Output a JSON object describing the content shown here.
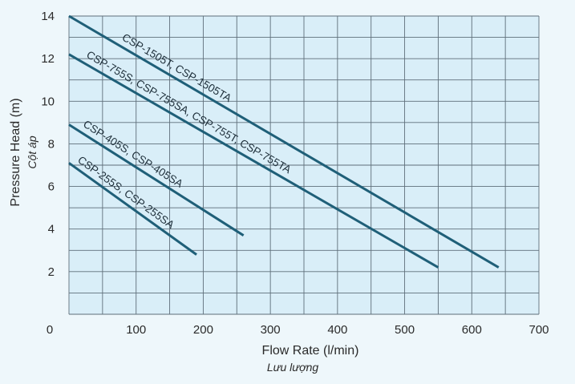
{
  "chart_data": {
    "type": "line",
    "xlabel": "Flow Rate (l/min)",
    "xlabel_sub": "Lưu lượng",
    "ylabel": "Pressure Head (m)",
    "ylabel_sub": "Cột áp",
    "xlim": [
      0,
      700
    ],
    "ylim": [
      0,
      14
    ],
    "x_ticks": [
      0,
      100,
      200,
      300,
      400,
      500,
      600,
      700
    ],
    "y_ticks": [
      2,
      4,
      6,
      8,
      10,
      12,
      14
    ],
    "y_tick_labels": [
      "2",
      "4",
      "6",
      "8",
      "10",
      "12",
      "14"
    ],
    "x_tick_labels": [
      "0",
      "100",
      "200",
      "300",
      "400",
      "500",
      "600",
      "700"
    ],
    "grid": true,
    "colors": {
      "plot_background": "#d9eef8",
      "grid": "#5f6f7a",
      "line": "#1f5f78",
      "page_background": "#eef7fb"
    },
    "series": [
      {
        "name": "CSP-1505T, CSP-1505TA",
        "x": [
          0,
          640
        ],
        "y": [
          14,
          2.2
        ]
      },
      {
        "name": "CSP-755S, CSP-755SA, CSP-755T, CSP-755TA",
        "x": [
          0,
          550
        ],
        "y": [
          12.2,
          2.2
        ]
      },
      {
        "name": "CSP-405S, CSP-405SA",
        "x": [
          0,
          260
        ],
        "y": [
          8.9,
          3.7
        ]
      },
      {
        "name": "CSP-255S, CSP-255SA",
        "x": [
          0,
          190
        ],
        "y": [
          7.1,
          2.8
        ]
      }
    ]
  }
}
